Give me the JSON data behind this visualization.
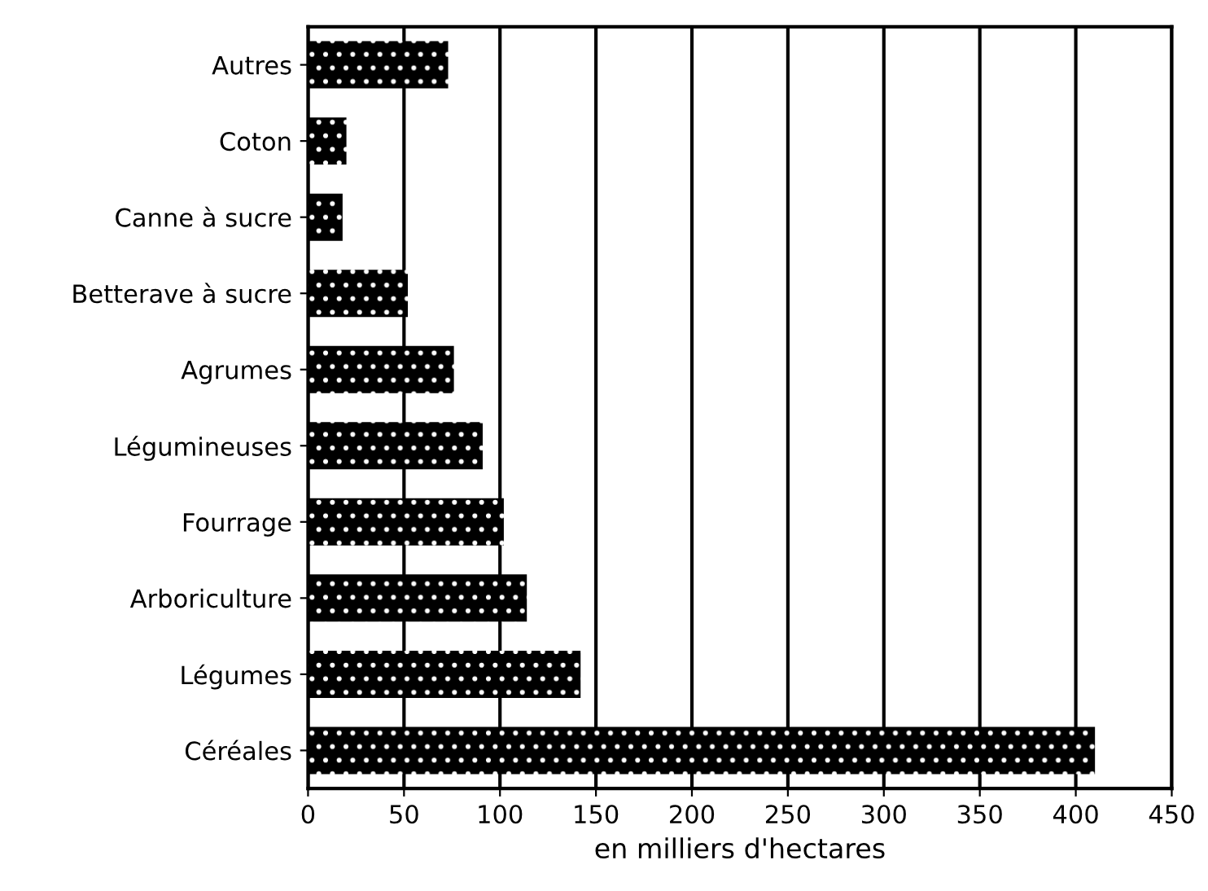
{
  "chart_data": {
    "type": "bar",
    "orientation": "horizontal",
    "xlabel": "en milliers d'hectares",
    "categories": [
      "Autres",
      "Coton",
      "Canne à sucre",
      "Betterave à sucre",
      "Agrumes",
      "Légumineuses",
      "Fourrage",
      "Arboriculture",
      "Légumes",
      "Céréales"
    ],
    "values": [
      73,
      20,
      18,
      52,
      76,
      91,
      102,
      114,
      142,
      410
    ],
    "color": "#000000",
    "xlim": [
      0,
      450
    ],
    "xticks": [
      0,
      50,
      100,
      150,
      200,
      250,
      300,
      350,
      400,
      450
    ],
    "grid": "x",
    "legend": false
  }
}
